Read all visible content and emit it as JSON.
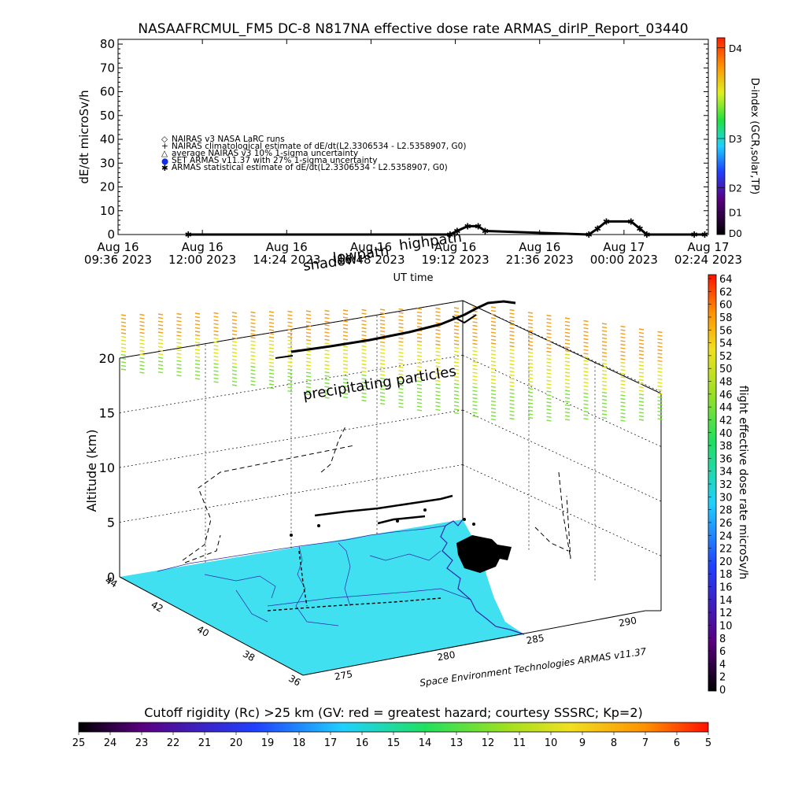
{
  "chart_data": [
    {
      "type": "line",
      "title": "NASAAFRCMUL_FM5 DC-8   N817NA effective dose rate ARMAS_dirIP_Report_03440",
      "ylabel": "dE/dt microSv/h",
      "xlabel": "UT time",
      "ylim": [
        0,
        82
      ],
      "yticks": [
        "0",
        "10",
        "20",
        "30",
        "40",
        "50",
        "60",
        "70",
        "80"
      ],
      "xticks": [
        {
          "line1": "Aug 16",
          "line2": "09:36 2023"
        },
        {
          "line1": "Aug 16",
          "line2": "12:00 2023"
        },
        {
          "line1": "Aug 16",
          "line2": "14:24 2023"
        },
        {
          "line1": "Aug 16",
          "line2": "16:48 2023"
        },
        {
          "line1": "Aug 16",
          "line2": "19:12 2023"
        },
        {
          "line1": "Aug 16",
          "line2": "21:36 2023"
        },
        {
          "line1": "Aug 17",
          "line2": "00:00 2023"
        },
        {
          "line1": "Aug 17",
          "line2": "02:24 2023"
        }
      ],
      "legend": [
        {
          "symbol": "◇",
          "text": "NAIRAS v3 NASA LaRC runs"
        },
        {
          "symbol": "+",
          "text": "NAIRAS climatological estimate of dE/dt(L2.3306534 - L2.5358907, G0)"
        },
        {
          "symbol": "△",
          "text": "average NAIRAS v3 10% 1-sigma uncertainty"
        },
        {
          "symbol": "●",
          "text": "SET ARMAS v11.37 with 27% 1-sigma uncertainty"
        },
        {
          "symbol": "✱",
          "text": "ARMAS statistical estimate of dE/dt(L2.3306534 - L2.5358907, G0)"
        }
      ],
      "series": [
        {
          "x_hours": [
            11.6,
            19.05,
            19.25,
            19.55,
            19.85,
            20.05,
            23.0,
            23.25,
            23.5,
            24.2,
            24.45,
            24.65,
            26.0,
            26.3
          ],
          "values": [
            0,
            0,
            1.5,
            3.5,
            3.5,
            1.5,
            0,
            2.5,
            5.5,
            5.5,
            2.5,
            0,
            0,
            0
          ]
        }
      ],
      "dindex_bar": {
        "label": "D-index (GCR,solar,TP)",
        "levels": [
          "D0",
          "D1",
          "D2",
          "D3",
          "D4"
        ]
      }
    },
    {
      "type": "scatter",
      "zlabel": "Altitude (km)",
      "zticks": [
        "0",
        "5",
        "10",
        "15",
        "20"
      ],
      "lat_ticks": [
        "44",
        "42",
        "40",
        "38",
        "36"
      ],
      "lon_ticks": [
        "275",
        "280",
        "285",
        "290"
      ],
      "annotations": {
        "shadow": "shadow",
        "lowpath": "lowpath",
        "highpath": "highpath",
        "precip": "precipitating particles",
        "credit": "Space Environment Technologies ARMAS v11.37"
      },
      "dose_bar": {
        "label": "flight effective dose rate microSv/h",
        "ticks": [
          "0",
          "2",
          "4",
          "6",
          "8",
          "10",
          "12",
          "14",
          "16",
          "18",
          "20",
          "22",
          "24",
          "26",
          "28",
          "30",
          "32",
          "34",
          "36",
          "38",
          "40",
          "42",
          "44",
          "46",
          "48",
          "50",
          "52",
          "54",
          "56",
          "58",
          "60",
          "62",
          "64"
        ]
      },
      "cutoff_bar": {
        "title": "Cutoff rigidity (Rc) >25 km (GV: red = greatest hazard; courtesy SSSRC; Kp=2)",
        "ticks": [
          "25",
          "24",
          "23",
          "22",
          "21",
          "20",
          "19",
          "18",
          "17",
          "16",
          "15",
          "14",
          "13",
          "12",
          "11",
          "10",
          "9",
          "8",
          "7",
          "6",
          "5"
        ]
      },
      "colors": {
        "ocean": "#40e0f0",
        "coast": "#2a2aa8",
        "precip_high": "#f0a020",
        "precip_mid": "#e0e020",
        "precip_low": "#80e040"
      }
    }
  ]
}
